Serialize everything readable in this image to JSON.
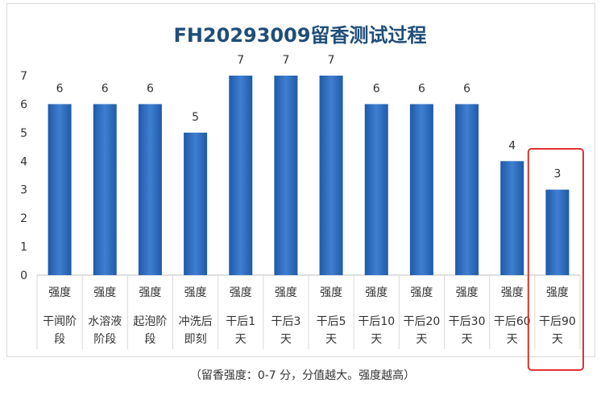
{
  "chart_data": {
    "type": "bar",
    "title": "FH20293009留香测试过程",
    "categories": [
      [
        "强度",
        "干闻阶",
        "段"
      ],
      [
        "强度",
        "水溶液",
        "阶段"
      ],
      [
        "强度",
        "起泡阶",
        "段"
      ],
      [
        "强度",
        "冲洗后",
        "即刻"
      ],
      [
        "强度",
        "干后1",
        "天"
      ],
      [
        "强度",
        "干后3",
        "天"
      ],
      [
        "强度",
        "干后5",
        "天"
      ],
      [
        "强度",
        "干后10",
        "天"
      ],
      [
        "强度",
        "干后20",
        "天"
      ],
      [
        "强度",
        "干后30",
        "天"
      ],
      [
        "强度",
        "干后60",
        "天"
      ],
      [
        "强度",
        "干后90",
        "天"
      ]
    ],
    "values": [
      6,
      6,
      6,
      5,
      7,
      7,
      7,
      6,
      6,
      6,
      4,
      3
    ],
    "ylim": [
      0,
      7
    ],
    "yticks": [
      0,
      1,
      2,
      3,
      4,
      5,
      6,
      7
    ],
    "xlabel": "",
    "ylabel": "",
    "grid": false,
    "highlight_index": 11,
    "bar_color": "#2e6bbf",
    "highlight_color": "#e0312f"
  },
  "footnote": "（留香强度：0-7 分，分值越大。强度越高）"
}
